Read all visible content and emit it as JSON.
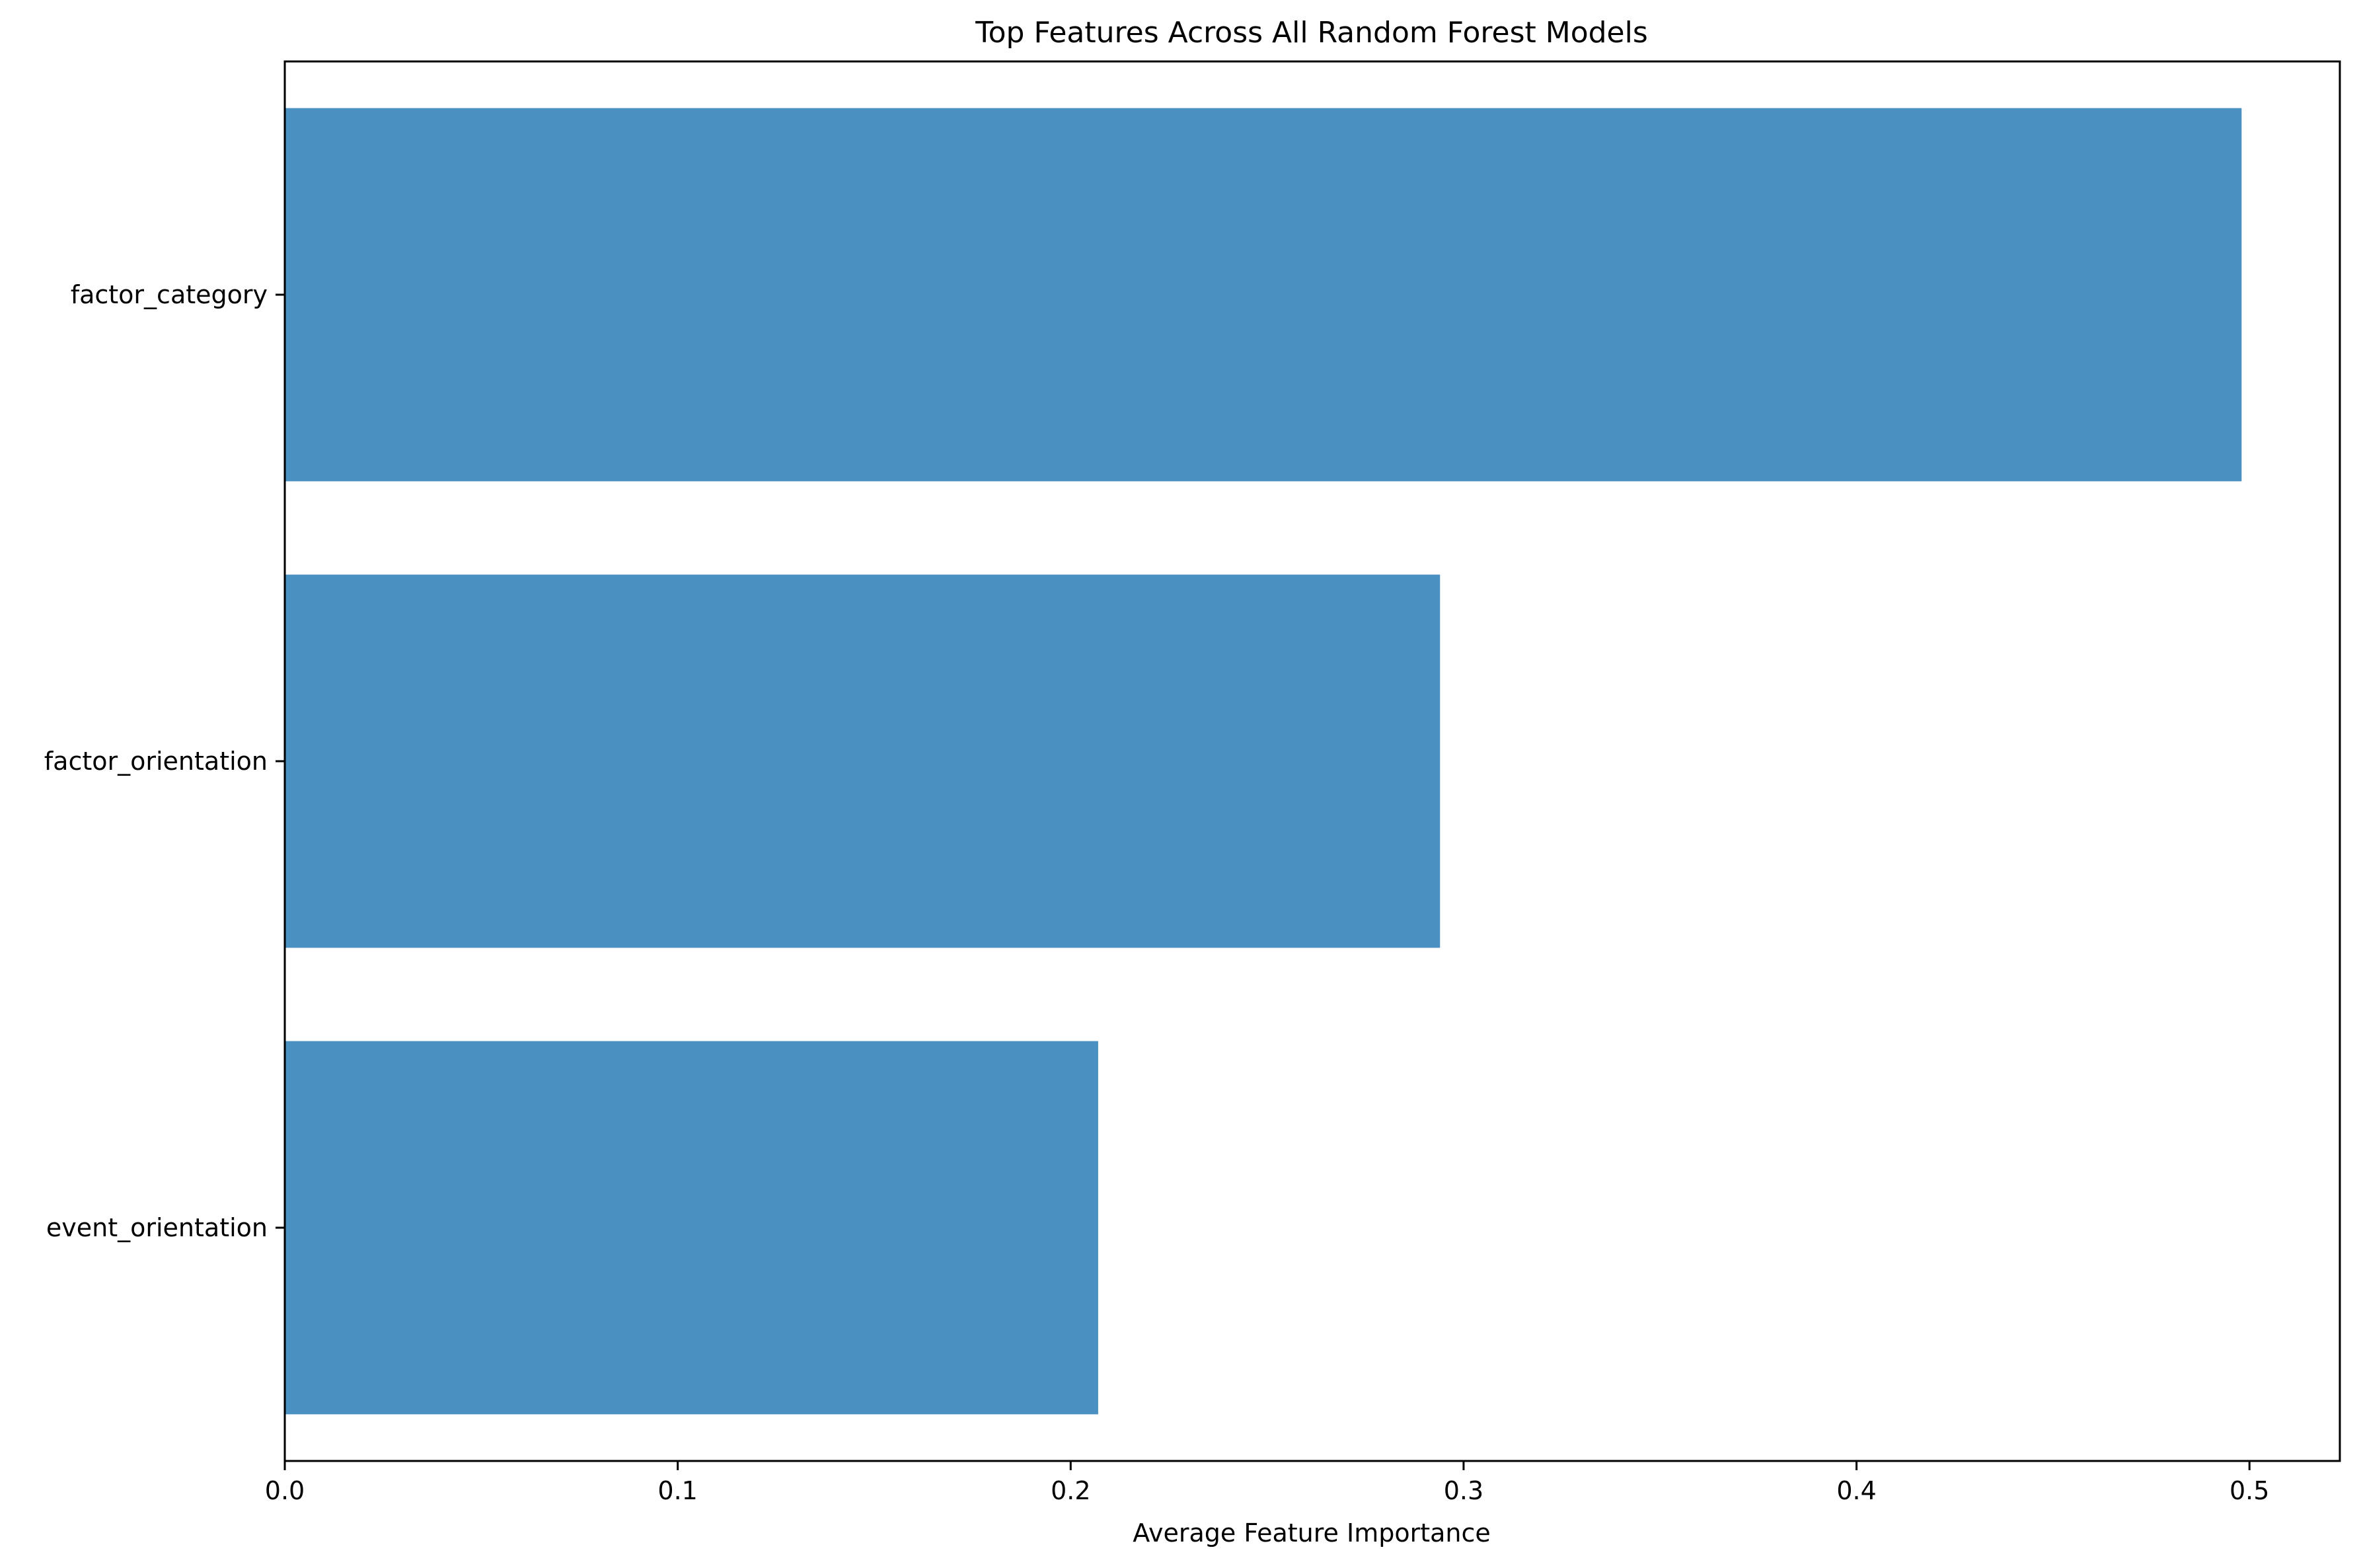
{
  "chart_data": {
    "type": "bar",
    "orientation": "horizontal",
    "title": "Top Features Across All Random Forest Models",
    "xlabel": "Average Feature Importance",
    "ylabel": "",
    "categories": [
      "factor_category",
      "factor_orientation",
      "event_orientation"
    ],
    "values": [
      0.498,
      0.294,
      0.207
    ],
    "xlim": [
      0,
      0.523
    ],
    "xticks": [
      0.0,
      0.1,
      0.2,
      0.3,
      0.4,
      0.5
    ],
    "xtick_labels": [
      "0.0",
      "0.1",
      "0.2",
      "0.3",
      "0.4",
      "0.5"
    ],
    "grid": false,
    "bar_color": "#4a91c2"
  }
}
